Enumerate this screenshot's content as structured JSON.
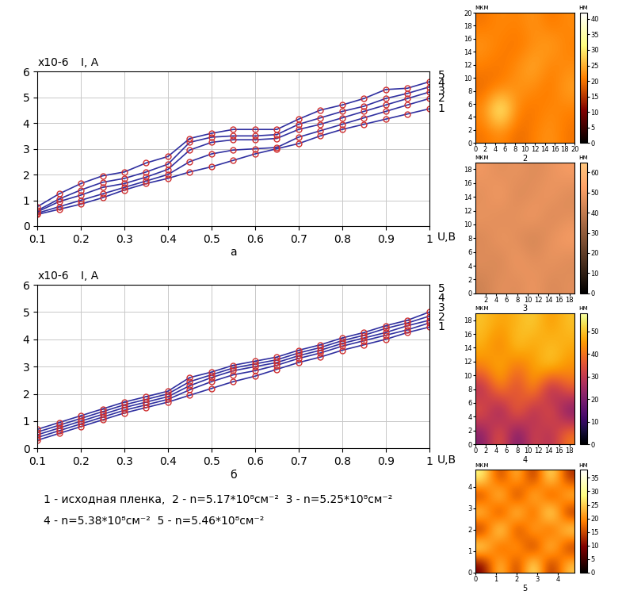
{
  "chart_data": [
    {
      "type": "line",
      "caption": "а",
      "multiplier": "x10-6",
      "ylabel": "I, A",
      "xlabel": "U,B",
      "x": [
        0.1,
        0.15,
        0.2,
        0.25,
        0.3,
        0.35,
        0.4,
        0.45,
        0.5,
        0.55,
        0.6,
        0.65,
        0.7,
        0.75,
        0.8,
        0.85,
        0.9,
        0.95,
        1
      ],
      "xlim": [
        0.1,
        1
      ],
      "xticks": [
        0.1,
        0.2,
        0.3,
        0.4,
        0.5,
        0.6,
        0.7,
        0.8,
        0.9,
        1
      ],
      "ylim": [
        0,
        6
      ],
      "yticks": [
        0,
        1,
        2,
        3,
        4,
        5,
        6
      ],
      "grid": true,
      "marker": "o",
      "series": [
        {
          "name": "1",
          "color": "#3030a0",
          "values": [
            0.45,
            0.65,
            0.85,
            1.1,
            1.4,
            1.65,
            1.85,
            2.1,
            2.3,
            2.55,
            2.8,
            3.0,
            3.2,
            3.5,
            3.75,
            3.95,
            4.15,
            4.35,
            4.55
          ]
        },
        {
          "name": "2",
          "color": "#3030a0",
          "values": [
            0.5,
            0.75,
            1.0,
            1.25,
            1.5,
            1.75,
            2.0,
            2.5,
            2.8,
            2.95,
            3.0,
            3.05,
            3.45,
            3.7,
            3.95,
            4.2,
            4.45,
            4.7,
            4.95
          ]
        },
        {
          "name": "3",
          "color": "#3030a0",
          "values": [
            0.55,
            0.95,
            1.2,
            1.5,
            1.65,
            1.9,
            2.2,
            2.95,
            3.25,
            3.35,
            3.35,
            3.4,
            3.75,
            3.95,
            4.2,
            4.45,
            4.7,
            4.95,
            5.2
          ]
        },
        {
          "name": "4",
          "color": "#3030a0",
          "values": [
            0.6,
            1.05,
            1.4,
            1.7,
            1.85,
            2.1,
            2.4,
            3.25,
            3.45,
            3.5,
            3.5,
            3.55,
            3.95,
            4.2,
            4.45,
            4.65,
            4.95,
            5.15,
            5.4
          ]
        },
        {
          "name": "5",
          "color": "#3030a0",
          "values": [
            0.75,
            1.25,
            1.65,
            1.95,
            2.1,
            2.45,
            2.7,
            3.4,
            3.6,
            3.75,
            3.75,
            3.75,
            4.15,
            4.5,
            4.7,
            4.95,
            5.3,
            5.35,
            5.6
          ]
        }
      ]
    },
    {
      "type": "line",
      "caption": "б",
      "multiplier": "x10-6",
      "ylabel": "I, A",
      "xlabel": "U,B",
      "x": [
        0.1,
        0.15,
        0.2,
        0.25,
        0.3,
        0.35,
        0.4,
        0.45,
        0.5,
        0.55,
        0.6,
        0.65,
        0.7,
        0.75,
        0.8,
        0.85,
        0.9,
        0.95,
        1
      ],
      "xlim": [
        0.1,
        1
      ],
      "xticks": [
        0.1,
        0.2,
        0.3,
        0.4,
        0.5,
        0.6,
        0.7,
        0.8,
        0.9,
        1
      ],
      "ylim": [
        0,
        6
      ],
      "yticks": [
        0,
        1,
        2,
        3,
        4,
        5,
        6
      ],
      "grid": true,
      "marker": "o",
      "series": [
        {
          "name": "1",
          "color": "#3030a0",
          "values": [
            0.3,
            0.55,
            0.8,
            1.05,
            1.3,
            1.5,
            1.7,
            1.95,
            2.2,
            2.45,
            2.65,
            2.9,
            3.15,
            3.35,
            3.6,
            3.8,
            4.0,
            4.25,
            4.45
          ]
        },
        {
          "name": "2",
          "color": "#3030a0",
          "values": [
            0.4,
            0.65,
            0.9,
            1.15,
            1.4,
            1.6,
            1.8,
            2.15,
            2.45,
            2.7,
            2.85,
            3.05,
            3.3,
            3.5,
            3.75,
            3.95,
            4.15,
            4.35,
            4.6
          ]
        },
        {
          "name": "3",
          "color": "#3030a0",
          "values": [
            0.5,
            0.75,
            1.0,
            1.25,
            1.5,
            1.7,
            1.9,
            2.3,
            2.6,
            2.85,
            3.0,
            3.15,
            3.4,
            3.6,
            3.85,
            4.05,
            4.25,
            4.5,
            4.7
          ]
        },
        {
          "name": "4",
          "color": "#3030a0",
          "values": [
            0.6,
            0.85,
            1.1,
            1.35,
            1.6,
            1.8,
            2.0,
            2.45,
            2.7,
            2.95,
            3.1,
            3.25,
            3.5,
            3.7,
            3.95,
            4.15,
            4.4,
            4.6,
            4.85
          ]
        },
        {
          "name": "5",
          "color": "#3030a0",
          "values": [
            0.7,
            0.95,
            1.2,
            1.45,
            1.7,
            1.9,
            2.1,
            2.6,
            2.8,
            3.05,
            3.2,
            3.35,
            3.6,
            3.8,
            4.05,
            4.25,
            4.5,
            4.7,
            5.0
          ]
        }
      ]
    },
    {
      "type": "heatmap",
      "caption": "2",
      "unit_label": "мкм",
      "colorbar_label": "нм",
      "xlim": [
        0,
        20
      ],
      "ylim": [
        0,
        20
      ],
      "xticks": [
        0,
        2,
        4,
        6,
        8,
        10,
        12,
        14,
        16,
        18,
        20
      ],
      "yticks": [
        0,
        2,
        4,
        6,
        8,
        10,
        12,
        14,
        16,
        18,
        20
      ],
      "cells": [
        [
          20,
          22,
          19,
          21,
          23,
          20
        ],
        [
          22,
          35,
          21,
          20,
          22,
          21
        ],
        [
          19,
          21,
          23,
          22,
          20,
          24
        ],
        [
          21,
          20,
          22,
          25,
          21,
          22
        ],
        [
          23,
          21,
          20,
          22,
          24,
          21
        ],
        [
          20,
          22,
          21,
          23,
          20,
          22
        ]
      ],
      "clim": [
        0,
        42
      ],
      "cticks": [
        0,
        5,
        10,
        15,
        20,
        25,
        30,
        35,
        40
      ]
    },
    {
      "type": "heatmap",
      "caption": "3",
      "unit_label": "мкм",
      "colorbar_label": "нм",
      "xlim": [
        0,
        19
      ],
      "ylim": [
        0,
        19
      ],
      "xticks": [
        2,
        4,
        6,
        8,
        10,
        12,
        14,
        16,
        18
      ],
      "yticks": [
        0,
        2,
        4,
        6,
        8,
        10,
        12,
        14,
        16,
        18
      ],
      "cells": [
        [
          42,
          48,
          45,
          50,
          44,
          47
        ],
        [
          47,
          43,
          51,
          46,
          49,
          45
        ],
        [
          44,
          50,
          46,
          42,
          48,
          52
        ],
        [
          49,
          45,
          48,
          51,
          44,
          47
        ],
        [
          46,
          52,
          44,
          47,
          50,
          45
        ],
        [
          50,
          46,
          49,
          45,
          48,
          51
        ]
      ],
      "clim": [
        0,
        65
      ],
      "cticks": [
        0,
        10,
        20,
        30,
        40,
        50,
        60
      ]
    },
    {
      "type": "heatmap",
      "caption": "4",
      "unit_label": "мкм",
      "colorbar_label": "нм",
      "xlim": [
        0,
        19
      ],
      "ylim": [
        0,
        19
      ],
      "xticks": [
        0,
        2,
        4,
        6,
        8,
        10,
        12,
        14,
        16,
        18
      ],
      "yticks": [
        0,
        2,
        4,
        6,
        8,
        10,
        12,
        14,
        16,
        18
      ],
      "cells": [
        [
          20,
          40,
          15,
          35,
          25,
          42
        ],
        [
          38,
          18,
          44,
          22,
          40,
          16
        ],
        [
          25,
          45,
          30,
          48,
          20,
          38
        ],
        [
          42,
          50,
          38,
          46,
          52,
          44
        ],
        [
          48,
          40,
          52,
          45,
          50,
          47
        ],
        [
          50,
          46,
          48,
          52,
          44,
          50
        ]
      ],
      "clim": [
        0,
        58
      ],
      "cticks": [
        0,
        10,
        20,
        30,
        40,
        50
      ]
    },
    {
      "type": "heatmap",
      "caption": "5",
      "unit_label": "мкм",
      "colorbar_label": "нм",
      "xlim": [
        0,
        4.8
      ],
      "ylim": [
        0,
        4.8
      ],
      "xticks": [
        0,
        1,
        2,
        3,
        4
      ],
      "yticks": [
        0,
        1,
        2,
        3,
        4
      ],
      "cells": [
        [
          8,
          28,
          10,
          32,
          9,
          25
        ],
        [
          30,
          12,
          26,
          8,
          30,
          11
        ],
        [
          10,
          33,
          9,
          27,
          12,
          29
        ],
        [
          27,
          9,
          31,
          11,
          34,
          10
        ],
        [
          12,
          30,
          8,
          29,
          10,
          26
        ],
        [
          29,
          11,
          27,
          9,
          31,
          12
        ]
      ],
      "clim": [
        0,
        38
      ],
      "cticks": [
        0,
        5,
        10,
        15,
        20,
        25,
        30,
        35
      ]
    }
  ],
  "caption_lines": [
    "1 - исходная пленка,  2 - n=5.17*10⁸см⁻²  3 - n=5.25*10⁸см⁻²",
    "4 - n=5.38*10⁸см⁻²  5 - n=5.46*10⁸см⁻²"
  ]
}
